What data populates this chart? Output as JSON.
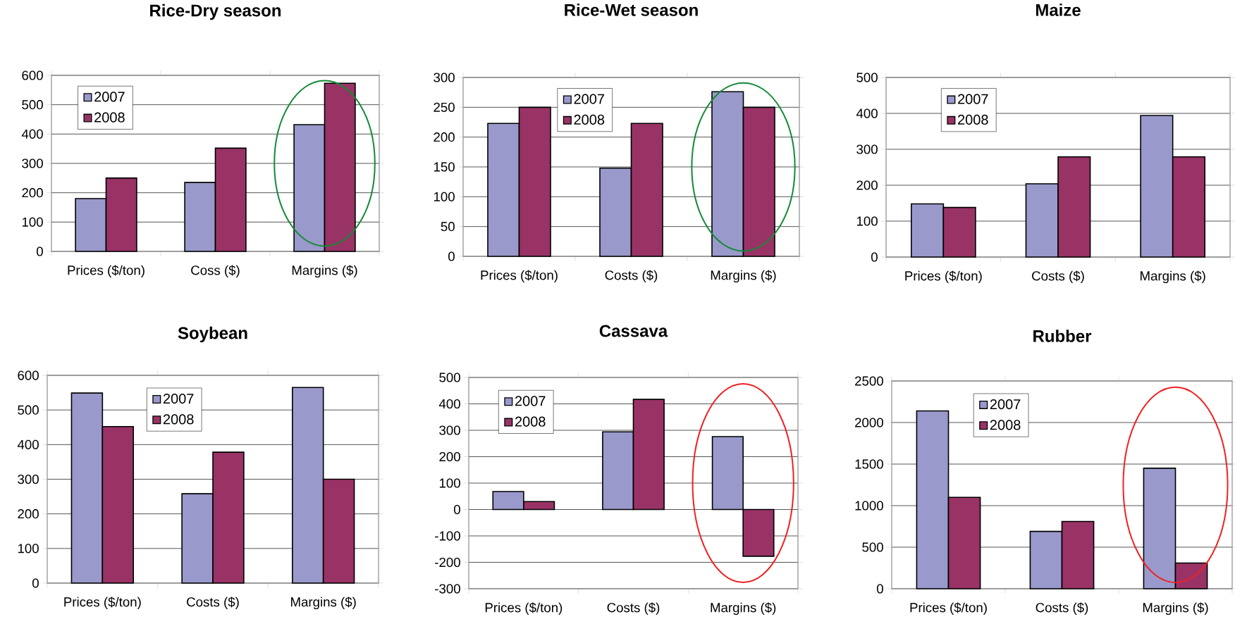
{
  "chart_data": [
    {
      "type": "bar",
      "title": "Rice-Dry season",
      "categories": [
        "Prices ($/ton)",
        "Coss ($)",
        "Margins ($)"
      ],
      "series": [
        {
          "name": "2007",
          "color": "#9999cc",
          "values": [
            180,
            235,
            432
          ]
        },
        {
          "name": "2008",
          "color": "#993366",
          "values": [
            250,
            352,
            573
          ]
        }
      ],
      "ylim": [
        0,
        600
      ],
      "yticks": [
        0,
        100,
        200,
        300,
        400,
        500,
        600
      ],
      "grid": "y",
      "legend": "top left"
    },
    {
      "type": "bar",
      "title": "Rice-Wet season",
      "categories": [
        "Prices ($/ton)",
        "Costs ($)",
        "Margins ($)"
      ],
      "series": [
        {
          "name": "2007",
          "color": "#9999cc",
          "values": [
            223,
            148,
            276
          ]
        },
        {
          "name": "2008",
          "color": "#993366",
          "values": [
            250,
            223,
            250
          ]
        }
      ],
      "ylim": [
        0,
        300
      ],
      "yticks": [
        0,
        50,
        100,
        150,
        200,
        250,
        300
      ],
      "grid": "y",
      "legend": "top"
    },
    {
      "type": "bar",
      "title": "Maize",
      "categories": [
        "Prices ($/ton)",
        "Costs ($)",
        "Margins ($)"
      ],
      "series": [
        {
          "name": "2007",
          "color": "#9999cc",
          "values": [
            148,
            204,
            394
          ]
        },
        {
          "name": "2008",
          "color": "#993366",
          "values": [
            138,
            279,
            279
          ]
        }
      ],
      "ylim": [
        0,
        500
      ],
      "yticks": [
        0,
        100,
        200,
        300,
        400,
        500
      ],
      "grid": "y",
      "legend": "top left"
    },
    {
      "type": "bar",
      "title": "Soybean",
      "categories": [
        "Prices ($/ton)",
        "Costs ($)",
        "Margins ($)"
      ],
      "series": [
        {
          "name": "2007",
          "color": "#9999cc",
          "values": [
            549,
            258,
            565
          ]
        },
        {
          "name": "2008",
          "color": "#993366",
          "values": [
            452,
            378,
            300
          ]
        }
      ],
      "ylim": [
        0,
        600
      ],
      "yticks": [
        0,
        100,
        200,
        300,
        400,
        500,
        600
      ],
      "grid": "y",
      "legend": "top"
    },
    {
      "type": "bar",
      "title": "Cassava",
      "categories": [
        "Prices ($/ton)",
        "Costs ($)",
        "Margins ($)"
      ],
      "series": [
        {
          "name": "2007",
          "color": "#9999cc",
          "values": [
            68,
            294,
            276
          ]
        },
        {
          "name": "2008",
          "color": "#993366",
          "values": [
            30,
            417,
            -177
          ]
        }
      ],
      "ylim": [
        -300,
        500
      ],
      "yticks": [
        -300,
        -200,
        -100,
        0,
        100,
        200,
        300,
        400,
        500
      ],
      "grid": "y",
      "legend": "top left"
    },
    {
      "type": "bar",
      "title": "Rubber",
      "categories": [
        "Prices ($/ton)",
        "Costs ($)",
        "Margins ($)"
      ],
      "series": [
        {
          "name": "2007",
          "color": "#9999cc",
          "values": [
            2140,
            690,
            1450
          ]
        },
        {
          "name": "2008",
          "color": "#993366",
          "values": [
            1100,
            810,
            310
          ]
        }
      ],
      "ylim": [
        0,
        2500
      ],
      "yticks": [
        0,
        500,
        1000,
        1500,
        2000,
        2500
      ],
      "grid": "y",
      "legend": "top left"
    }
  ]
}
